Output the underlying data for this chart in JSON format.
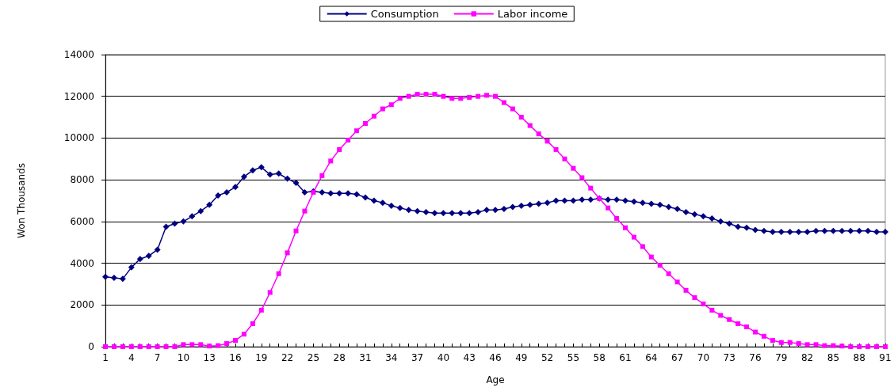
{
  "chart_data": {
    "type": "line",
    "xlabel": "Age",
    "ylabel": "Won Thousands",
    "categories": [
      "1",
      null,
      null,
      "4",
      null,
      null,
      "7",
      null,
      null,
      "10",
      null,
      null,
      "13",
      null,
      null,
      "16",
      null,
      null,
      "19",
      null,
      null,
      "22",
      null,
      null,
      "25",
      null,
      null,
      "28",
      null,
      null,
      "31",
      null,
      null,
      "34",
      null,
      null,
      "37",
      null,
      null,
      "40",
      null,
      null,
      "43",
      null,
      null,
      "46",
      null,
      null,
      "49",
      null,
      null,
      "52",
      null,
      null,
      "55",
      null,
      null,
      "58",
      null,
      null,
      "61",
      null,
      null,
      "64",
      null,
      null,
      "67",
      null,
      null,
      "70",
      null,
      null,
      "73",
      null,
      null,
      "76",
      null,
      null,
      "79",
      null,
      null,
      "82",
      null,
      null,
      "85",
      null,
      null,
      "88",
      null,
      null,
      "91"
    ],
    "series": [
      {
        "name": "Consumption",
        "color": "#000080",
        "marker": "diamond",
        "values": [
          3350,
          3300,
          3250,
          3800,
          4200,
          4350,
          4650,
          5750,
          5900,
          6000,
          6250,
          6500,
          6800,
          7250,
          7400,
          7650,
          8150,
          8450,
          8600,
          8250,
          8300,
          8050,
          7850,
          7400,
          7450,
          7400,
          7350,
          7350,
          7350,
          7300,
          7150,
          7000,
          6900,
          6750,
          6650,
          6550,
          6500,
          6450,
          6400,
          6400,
          6400,
          6400,
          6400,
          6450,
          6550,
          6550,
          6600,
          6700,
          6750,
          6800,
          6850,
          6900,
          7000,
          7000,
          7000,
          7050,
          7050,
          7100,
          7050,
          7050,
          7000,
          6950,
          6900,
          6850,
          6800,
          6700,
          6600,
          6450,
          6350,
          6250,
          6150,
          6000,
          5900,
          5750,
          5700,
          5600,
          5550,
          5500,
          5500,
          5500,
          5500,
          5500,
          5550,
          5550,
          5550,
          5550,
          5550,
          5550,
          5550,
          5500,
          5500
        ]
      },
      {
        "name": "Labor income",
        "color": "#ff00ff",
        "marker": "square",
        "values": [
          0,
          0,
          0,
          0,
          0,
          0,
          0,
          0,
          0,
          100,
          100,
          100,
          30,
          50,
          150,
          300,
          600,
          1100,
          1750,
          2600,
          3500,
          4500,
          5550,
          6500,
          7400,
          8200,
          8900,
          9450,
          9900,
          10350,
          10700,
          11050,
          11400,
          11600,
          11900,
          12000,
          12100,
          12100,
          12100,
          12000,
          11900,
          11900,
          11950,
          12000,
          12050,
          12000,
          11700,
          11400,
          11000,
          10600,
          10200,
          9850,
          9450,
          9000,
          8550,
          8100,
          7600,
          7100,
          6650,
          6150,
          5700,
          5250,
          4800,
          4300,
          3900,
          3500,
          3100,
          2700,
          2350,
          2050,
          1750,
          1500,
          1300,
          1100,
          950,
          700,
          500,
          300,
          200,
          200,
          150,
          100,
          100,
          50,
          50,
          30,
          0,
          0,
          0,
          0,
          0
        ]
      }
    ],
    "ylim": [
      0,
      14000
    ],
    "yticks": [
      0,
      2000,
      4000,
      6000,
      8000,
      10000,
      12000,
      14000
    ],
    "grid": "y",
    "legend": "top",
    "line_style": "solid"
  }
}
